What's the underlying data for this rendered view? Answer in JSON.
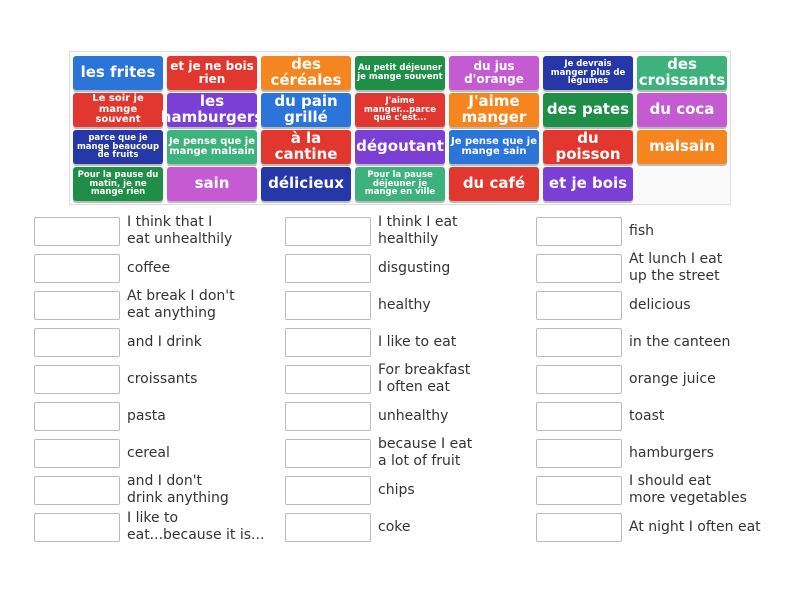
{
  "tiles": [
    {
      "text": "les frites",
      "color": "#2b74d8"
    },
    {
      "text": "et je ne bois rien",
      "color": "#e2372f"
    },
    {
      "text": "des céréales",
      "color": "#f5861f"
    },
    {
      "text": "Au petit déjeuner je mange souvent",
      "color": "#1f8f48"
    },
    {
      "text": "du jus d'orange",
      "color": "#c45bd2"
    },
    {
      "text": "Je devrais manger plus de légumes",
      "color": "#2638a8"
    },
    {
      "text": "des croissants",
      "color": "#3db27c"
    },
    {
      "text": "Le soir je mange souvent",
      "color": "#e2372f"
    },
    {
      "text": "les hamburgers",
      "color": "#7c3fd6"
    },
    {
      "text": "du pain grillé",
      "color": "#2b74d8"
    },
    {
      "text": "J'aime manger...parce que c'est...",
      "color": "#e2372f"
    },
    {
      "text": "J'aime manger",
      "color": "#f5861f"
    },
    {
      "text": "des pates",
      "color": "#1f8f48"
    },
    {
      "text": "du coca",
      "color": "#c45bd2"
    },
    {
      "text": "parce que je mange beaucoup de fruits",
      "color": "#2638a8"
    },
    {
      "text": "Je pense que je mange malsain",
      "color": "#3db27c"
    },
    {
      "text": "à la cantine",
      "color": "#e2372f"
    },
    {
      "text": "dégoutant",
      "color": "#7c3fd6"
    },
    {
      "text": "Je pense que je mange sain",
      "color": "#2b74d8"
    },
    {
      "text": "du poisson",
      "color": "#e2372f"
    },
    {
      "text": "malsain",
      "color": "#f5861f"
    },
    {
      "text": "Pour la pause du matin, je ne mange rien",
      "color": "#1f8f48"
    },
    {
      "text": "sain",
      "color": "#c45bd2"
    },
    {
      "text": "délicieux",
      "color": "#2638a8"
    },
    {
      "text": "Pour la pause déjeuner je mange en ville",
      "color": "#3db27c"
    },
    {
      "text": "du café",
      "color": "#e2372f"
    },
    {
      "text": "et je bois",
      "color": "#7c3fd6"
    }
  ],
  "columns": [
    [
      [
        "I think that I",
        "eat unhealthily"
      ],
      [
        "coffee"
      ],
      [
        "At break I don't",
        "eat anything"
      ],
      [
        "and I drink"
      ],
      [
        "croissants"
      ],
      [
        "pasta"
      ],
      [
        "cereal"
      ],
      [
        "and I don't",
        "drink anything"
      ],
      [
        "I like to",
        "eat...because it is..."
      ]
    ],
    [
      [
        "I think I eat",
        "healthily"
      ],
      [
        "disgusting"
      ],
      [
        "healthy"
      ],
      [
        "I like to eat"
      ],
      [
        "For breakfast",
        "I often eat"
      ],
      [
        "unhealthy"
      ],
      [
        "because I eat",
        "a lot of fruit"
      ],
      [
        "chips"
      ],
      [
        "coke"
      ]
    ],
    [
      [
        "fish"
      ],
      [
        "At lunch I eat",
        "up the street"
      ],
      [
        "delicious"
      ],
      [
        "in the canteen"
      ],
      [
        "orange juice"
      ],
      [
        "toast"
      ],
      [
        "hamburgers"
      ],
      [
        "I should eat",
        "more vegetables"
      ],
      [
        "At night I often eat"
      ]
    ]
  ]
}
